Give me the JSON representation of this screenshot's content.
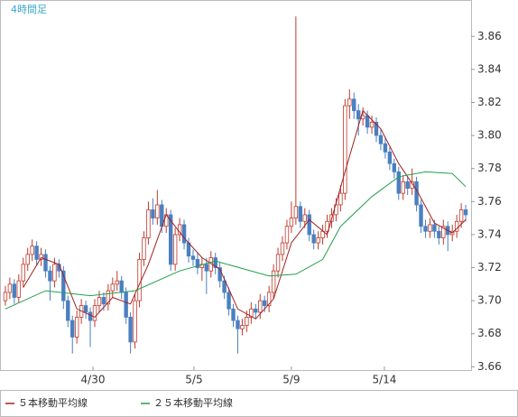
{
  "chart_data": {
    "type": "candlestick",
    "title": "4時間足",
    "ohlc": [
      [
        3.7,
        3.709,
        3.697,
        3.705
      ],
      [
        3.705,
        3.714,
        3.701,
        3.71
      ],
      [
        3.71,
        3.713,
        3.698,
        3.702
      ],
      [
        3.702,
        3.716,
        3.699,
        3.712
      ],
      [
        3.712,
        3.726,
        3.708,
        3.722
      ],
      [
        3.722,
        3.732,
        3.718,
        3.728
      ],
      [
        3.728,
        3.737,
        3.724,
        3.733
      ],
      [
        3.733,
        3.736,
        3.721,
        3.725
      ],
      [
        3.725,
        3.732,
        3.721,
        3.728
      ],
      [
        3.728,
        3.731,
        3.714,
        3.718
      ],
      [
        3.718,
        3.721,
        3.7,
        3.712
      ],
      [
        3.712,
        3.726,
        3.708,
        3.722
      ],
      [
        3.722,
        3.725,
        3.714,
        3.718
      ],
      [
        3.718,
        3.721,
        3.695,
        3.7
      ],
      [
        3.7,
        3.703,
        3.684,
        3.688
      ],
      [
        3.688,
        3.691,
        3.668,
        3.678
      ],
      [
        3.678,
        3.694,
        3.674,
        3.69
      ],
      [
        3.69,
        3.701,
        3.686,
        3.697
      ],
      [
        3.697,
        3.7,
        3.689,
        3.693
      ],
      [
        3.693,
        3.696,
        3.672,
        3.688
      ],
      [
        3.688,
        3.701,
        3.684,
        3.697
      ],
      [
        3.697,
        3.706,
        3.693,
        3.702
      ],
      [
        3.702,
        3.705,
        3.694,
        3.698
      ],
      [
        3.698,
        3.71,
        3.694,
        3.706
      ],
      [
        3.706,
        3.714,
        3.702,
        3.71
      ],
      [
        3.71,
        3.718,
        3.706,
        3.712
      ],
      [
        3.712,
        3.715,
        3.701,
        3.705
      ],
      [
        3.705,
        3.708,
        3.686,
        3.69
      ],
      [
        3.69,
        3.693,
        3.668,
        3.675
      ],
      [
        3.675,
        3.704,
        3.671,
        3.7
      ],
      [
        3.7,
        3.729,
        3.696,
        3.725
      ],
      [
        3.725,
        3.742,
        3.721,
        3.738
      ],
      [
        3.738,
        3.76,
        3.734,
        3.755
      ],
      [
        3.755,
        3.762,
        3.746,
        3.75
      ],
      [
        3.75,
        3.767,
        3.746,
        3.758
      ],
      [
        3.758,
        3.761,
        3.741,
        3.745
      ],
      [
        3.745,
        3.756,
        3.741,
        3.752
      ],
      [
        3.752,
        3.755,
        3.718,
        3.722
      ],
      [
        3.722,
        3.744,
        3.718,
        3.74
      ],
      [
        3.74,
        3.75,
        3.736,
        3.746
      ],
      [
        3.746,
        3.749,
        3.731,
        3.735
      ],
      [
        3.735,
        3.738,
        3.723,
        3.727
      ],
      [
        3.727,
        3.731,
        3.721,
        3.725
      ],
      [
        3.725,
        3.729,
        3.716,
        3.72
      ],
      [
        3.72,
        3.726,
        3.712,
        3.722
      ],
      [
        3.722,
        3.726,
        3.704,
        3.718
      ],
      [
        3.718,
        3.73,
        3.714,
        3.726
      ],
      [
        3.726,
        3.729,
        3.716,
        3.72
      ],
      [
        3.72,
        3.723,
        3.708,
        3.712
      ],
      [
        3.712,
        3.715,
        3.701,
        3.705
      ],
      [
        3.705,
        3.708,
        3.691,
        3.695
      ],
      [
        3.695,
        3.698,
        3.684,
        3.688
      ],
      [
        3.688,
        3.691,
        3.668,
        3.683
      ],
      [
        3.683,
        3.689,
        3.679,
        3.685
      ],
      [
        3.685,
        3.694,
        3.681,
        3.69
      ],
      [
        3.69,
        3.699,
        3.686,
        3.695
      ],
      [
        3.695,
        3.698,
        3.689,
        3.693
      ],
      [
        3.693,
        3.704,
        3.689,
        3.7
      ],
      [
        3.7,
        3.703,
        3.693,
        3.697
      ],
      [
        3.697,
        3.709,
        3.693,
        3.705
      ],
      [
        3.705,
        3.722,
        3.701,
        3.718
      ],
      [
        3.718,
        3.732,
        3.714,
        3.728
      ],
      [
        3.728,
        3.739,
        3.724,
        3.735
      ],
      [
        3.735,
        3.749,
        3.731,
        3.745
      ],
      [
        3.745,
        3.76,
        3.741,
        3.75
      ],
      [
        3.75,
        3.872,
        3.746,
        3.757
      ],
      [
        3.757,
        3.76,
        3.744,
        3.748
      ],
      [
        3.748,
        3.756,
        3.744,
        3.752
      ],
      [
        3.752,
        3.755,
        3.736,
        3.74
      ],
      [
        3.74,
        3.743,
        3.731,
        3.735
      ],
      [
        3.735,
        3.742,
        3.731,
        3.738
      ],
      [
        3.738,
        3.746,
        3.734,
        3.742
      ],
      [
        3.742,
        3.752,
        3.738,
        3.748
      ],
      [
        3.748,
        3.756,
        3.744,
        3.752
      ],
      [
        3.752,
        3.762,
        3.748,
        3.758
      ],
      [
        3.758,
        3.77,
        3.754,
        3.765
      ],
      [
        3.765,
        3.822,
        3.761,
        3.818
      ],
      [
        3.818,
        3.828,
        3.81,
        3.822
      ],
      [
        3.822,
        3.826,
        3.81,
        3.815
      ],
      [
        3.815,
        3.819,
        3.8,
        3.81
      ],
      [
        3.81,
        3.817,
        3.806,
        3.812
      ],
      [
        3.812,
        3.815,
        3.801,
        3.805
      ],
      [
        3.805,
        3.812,
        3.801,
        3.808
      ],
      [
        3.808,
        3.811,
        3.796,
        3.8
      ],
      [
        3.8,
        3.804,
        3.791,
        3.795
      ],
      [
        3.795,
        3.799,
        3.786,
        3.79
      ],
      [
        3.79,
        3.793,
        3.779,
        3.783
      ],
      [
        3.783,
        3.786,
        3.774,
        3.778
      ],
      [
        3.778,
        3.781,
        3.761,
        3.765
      ],
      [
        3.765,
        3.776,
        3.761,
        3.772
      ],
      [
        3.772,
        3.775,
        3.764,
        3.768
      ],
      [
        3.768,
        3.78,
        3.764,
        3.772
      ],
      [
        3.772,
        3.775,
        3.754,
        3.758
      ],
      [
        3.758,
        3.761,
        3.741,
        3.745
      ],
      [
        3.745,
        3.749,
        3.738,
        3.742
      ],
      [
        3.742,
        3.75,
        3.738,
        3.746
      ],
      [
        3.746,
        3.749,
        3.738,
        3.742
      ],
      [
        3.742,
        3.745,
        3.734,
        3.738
      ],
      [
        3.738,
        3.749,
        3.734,
        3.745
      ],
      [
        3.745,
        3.748,
        3.73,
        3.74
      ],
      [
        3.74,
        3.746,
        3.736,
        3.742
      ],
      [
        3.742,
        3.752,
        3.738,
        3.748
      ],
      [
        3.748,
        3.759,
        3.744,
        3.755
      ],
      [
        3.755,
        3.758,
        3.748,
        3.752
      ]
    ],
    "up_color": "#c0392b",
    "down_color": "#4a7fc1",
    "series": [
      {
        "name": "５本移動平均線",
        "color": "#a02020",
        "x": [
          4,
          8,
          12,
          16,
          20,
          24,
          28,
          32,
          36,
          40,
          44,
          48,
          52,
          56,
          60,
          64,
          68,
          72,
          76,
          80,
          84,
          88,
          92,
          96,
          100,
          103
        ],
        "values": [
          3.708,
          3.726,
          3.722,
          3.695,
          3.69,
          3.702,
          3.698,
          3.722,
          3.752,
          3.738,
          3.726,
          3.719,
          3.695,
          3.689,
          3.701,
          3.735,
          3.749,
          3.74,
          3.778,
          3.815,
          3.804,
          3.783,
          3.767,
          3.747,
          3.741,
          3.749
        ]
      },
      {
        "name": "２５本移動平均線",
        "color": "#22a04a",
        "x": [
          0,
          9,
          19,
          29,
          39,
          47,
          59,
          65,
          71,
          75,
          82,
          88,
          94,
          100,
          103
        ],
        "values": [
          3.695,
          3.706,
          3.703,
          3.706,
          3.718,
          3.724,
          3.715,
          3.716,
          3.725,
          3.745,
          3.763,
          3.775,
          3.778,
          3.777,
          3.769
        ]
      }
    ],
    "xlim": [
      -1.2,
      104.2
    ],
    "xticks": [
      {
        "value": 19.6,
        "label": "4/30"
      },
      {
        "value": 42.2,
        "label": "5/5"
      },
      {
        "value": 64.0,
        "label": "5/9"
      },
      {
        "value": 84.8,
        "label": "5/14"
      }
    ],
    "ylim": [
      3.658,
      3.882
    ],
    "yticks": [
      3.66,
      3.68,
      {
        "value": 3.7,
        "label": "3.70"
      },
      3.72,
      3.74,
      3.76,
      3.78,
      {
        "value": 3.8,
        "label": "3.80"
      },
      3.82,
      3.84,
      3.86
    ]
  }
}
